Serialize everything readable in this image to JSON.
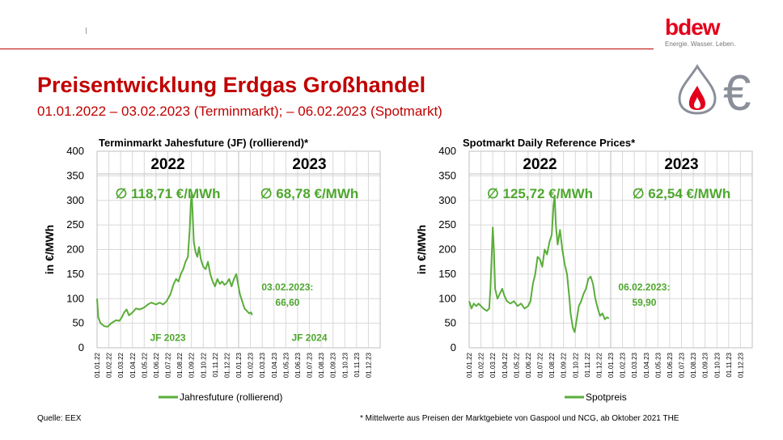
{
  "header": {
    "title": "Preisentwicklung Erdgas Großhandel",
    "subtitle": "01.01.2022 – 03.02.2023 (Terminmarkt); – 06.02.2023 (Spotmarkt)",
    "logo_text": "bdew",
    "logo_tagline": "Energie. Wasser. Leben."
  },
  "footer": {
    "source": "Quelle: EEX",
    "note": "* Mittelwerte aus Preisen der Marktgebiete von Gaspool und NCG, ab Oktober 2021 THE"
  },
  "colors": {
    "line": "#5aad3a",
    "accent_red": "#c00000",
    "avg_text": "#4ea72e",
    "grid": "#d9d9d9"
  },
  "icons": [
    "flame-drop-icon",
    "euro-icon"
  ],
  "chart_data": [
    {
      "type": "line",
      "title": "Terminmarkt Jahesfuture (JF) (rollierend)",
      "title_suffix": "*",
      "ylabel": "in €/MWh",
      "ylim": [
        0,
        400
      ],
      "yticks": [
        0,
        50,
        100,
        150,
        200,
        250,
        300,
        350,
        400
      ],
      "grid": true,
      "xtick_labels": [
        "01.01.22",
        "01.02.22",
        "01.03.22",
        "01.04.22",
        "01.05.22",
        "01.06.22",
        "01.07.22",
        "01.08.22",
        "01.09.22",
        "01.10.22",
        "01.11.22",
        "01.12.22",
        "01.01.23",
        "01.02.23",
        "01.03.23",
        "01.04.23",
        "01.05.23",
        "01.06.23",
        "01.07.23",
        "01.08.23",
        "01.09.23",
        "01.10.23",
        "01.11.23",
        "01.12.23"
      ],
      "years": [
        "2022",
        "2023"
      ],
      "averages": [
        "∅ 118,71 €/MWh",
        "∅ 68,78 €/MWh"
      ],
      "period_labels": [
        "JF 2023",
        "JF 2024"
      ],
      "last_value_date": "03.02.2023:",
      "last_value": "66,60",
      "series": [
        {
          "name": "Jahresfuture (rollierend)",
          "points": [
            [
              0,
              100
            ],
            [
              0.1,
              62
            ],
            [
              0.3,
              50
            ],
            [
              0.6,
              44
            ],
            [
              0.9,
              43
            ],
            [
              1.2,
              50
            ],
            [
              1.6,
              56
            ],
            [
              1.9,
              55
            ],
            [
              2.1,
              62
            ],
            [
              2.3,
              72
            ],
            [
              2.5,
              78
            ],
            [
              2.7,
              66
            ],
            [
              3,
              72
            ],
            [
              3.3,
              80
            ],
            [
              3.6,
              78
            ],
            [
              4,
              82
            ],
            [
              4.3,
              88
            ],
            [
              4.6,
              92
            ],
            [
              5,
              88
            ],
            [
              5.3,
              92
            ],
            [
              5.6,
              88
            ],
            [
              5.9,
              95
            ],
            [
              6.2,
              108
            ],
            [
              6.5,
              130
            ],
            [
              6.7,
              140
            ],
            [
              6.9,
              135
            ],
            [
              7.1,
              150
            ],
            [
              7.3,
              160
            ],
            [
              7.5,
              175
            ],
            [
              7.7,
              185
            ],
            [
              7.85,
              240
            ],
            [
              7.95,
              295
            ],
            [
              8.02,
              315
            ],
            [
              8.1,
              275
            ],
            [
              8.2,
              215
            ],
            [
              8.35,
              195
            ],
            [
              8.5,
              185
            ],
            [
              8.65,
              205
            ],
            [
              8.8,
              180
            ],
            [
              9,
              165
            ],
            [
              9.2,
              160
            ],
            [
              9.4,
              175
            ],
            [
              9.6,
              150
            ],
            [
              9.8,
              135
            ],
            [
              10,
              125
            ],
            [
              10.2,
              140
            ],
            [
              10.4,
              130
            ],
            [
              10.6,
              135
            ],
            [
              10.8,
              128
            ],
            [
              11,
              132
            ],
            [
              11.2,
              140
            ],
            [
              11.4,
              125
            ],
            [
              11.6,
              140
            ],
            [
              11.8,
              150
            ],
            [
              11.95,
              130
            ],
            [
              12.1,
              110
            ],
            [
              12.3,
              95
            ],
            [
              12.5,
              80
            ],
            [
              12.7,
              75
            ],
            [
              12.9,
              70
            ],
            [
              13.05,
              72
            ],
            [
              13.15,
              66.6
            ]
          ]
        }
      ]
    },
    {
      "type": "line",
      "title": "Spotmarkt Daily Reference Prices",
      "title_suffix": "*",
      "ylabel": "in €/MWh",
      "ylim": [
        0,
        400
      ],
      "yticks": [
        0,
        50,
        100,
        150,
        200,
        250,
        300,
        350,
        400
      ],
      "grid": true,
      "xtick_labels": [
        "01.01.22",
        "01.02.22",
        "01.03.22",
        "01.04.22",
        "01.05.22",
        "01.06.22",
        "01.07.22",
        "01.08.22",
        "01.09.22",
        "01.10.22",
        "01.11.22",
        "01.12.22",
        "01.01.23",
        "01.02.23",
        "01.03.23",
        "01.04.23",
        "01.05.23",
        "01.06.23",
        "01.07.23",
        "01.08.23",
        "01.09.23",
        "01.10.23",
        "01.11.23",
        "01.12.23"
      ],
      "years": [
        "2022",
        "2023"
      ],
      "averages": [
        "∅ 125,72 €/MWh",
        "∅   62,54 €/MWh"
      ],
      "last_value_date": "06.02.2023:",
      "last_value": "59,90",
      "series": [
        {
          "name": "Spotpreis",
          "points": [
            [
              0,
              95
            ],
            [
              0.2,
              80
            ],
            [
              0.4,
              90
            ],
            [
              0.6,
              85
            ],
            [
              0.8,
              90
            ],
            [
              1,
              85
            ],
            [
              1.2,
              80
            ],
            [
              1.5,
              75
            ],
            [
              1.7,
              80
            ],
            [
              1.8,
              120
            ],
            [
              1.9,
              180
            ],
            [
              2.0,
              245
            ],
            [
              2.1,
              200
            ],
            [
              2.2,
              120
            ],
            [
              2.4,
              100
            ],
            [
              2.6,
              110
            ],
            [
              2.8,
              120
            ],
            [
              3,
              105
            ],
            [
              3.2,
              95
            ],
            [
              3.5,
              90
            ],
            [
              3.8,
              95
            ],
            [
              4.1,
              85
            ],
            [
              4.4,
              90
            ],
            [
              4.7,
              80
            ],
            [
              5,
              85
            ],
            [
              5.2,
              95
            ],
            [
              5.4,
              130
            ],
            [
              5.6,
              150
            ],
            [
              5.8,
              185
            ],
            [
              6,
              180
            ],
            [
              6.2,
              165
            ],
            [
              6.4,
              200
            ],
            [
              6.6,
              190
            ],
            [
              6.8,
              215
            ],
            [
              7,
              230
            ],
            [
              7.15,
              290
            ],
            [
              7.25,
              310
            ],
            [
              7.35,
              250
            ],
            [
              7.5,
              210
            ],
            [
              7.7,
              240
            ],
            [
              7.9,
              200
            ],
            [
              8.1,
              170
            ],
            [
              8.3,
              150
            ],
            [
              8.5,
              100
            ],
            [
              8.6,
              70
            ],
            [
              8.8,
              40
            ],
            [
              8.95,
              32
            ],
            [
              9.1,
              55
            ],
            [
              9.3,
              85
            ],
            [
              9.5,
              95
            ],
            [
              9.7,
              110
            ],
            [
              9.9,
              120
            ],
            [
              10.1,
              140
            ],
            [
              10.3,
              145
            ],
            [
              10.5,
              130
            ],
            [
              10.7,
              100
            ],
            [
              10.9,
              80
            ],
            [
              11.1,
              65
            ],
            [
              11.3,
              70
            ],
            [
              11.5,
              58
            ],
            [
              11.7,
              62
            ],
            [
              11.85,
              59.9
            ]
          ]
        }
      ]
    }
  ]
}
